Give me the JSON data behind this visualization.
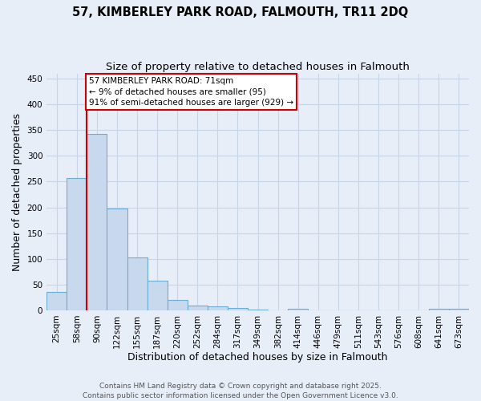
{
  "title_line1": "57, KIMBERLEY PARK ROAD, FALMOUTH, TR11 2DQ",
  "title_line2": "Size of property relative to detached houses in Falmouth",
  "xlabel": "Distribution of detached houses by size in Falmouth",
  "ylabel": "Number of detached properties",
  "categories": [
    "25sqm",
    "58sqm",
    "90sqm",
    "122sqm",
    "155sqm",
    "187sqm",
    "220sqm",
    "252sqm",
    "284sqm",
    "317sqm",
    "349sqm",
    "382sqm",
    "414sqm",
    "446sqm",
    "479sqm",
    "511sqm",
    "543sqm",
    "576sqm",
    "608sqm",
    "641sqm",
    "673sqm"
  ],
  "values": [
    35,
    257,
    343,
    198,
    103,
    57,
    20,
    10,
    7,
    4,
    2,
    0,
    3,
    0,
    0,
    0,
    0,
    0,
    0,
    3,
    3
  ],
  "bar_color": "#c8d9ee",
  "bar_edge_color": "#6aaed6",
  "property_line_color": "#cc0000",
  "property_line_x": 1.5,
  "annotation_text": "57 KIMBERLEY PARK ROAD: 71sqm\n← 9% of detached houses are smaller (95)\n91% of semi-detached houses are larger (929) →",
  "annotation_box_color": "white",
  "annotation_box_edge_color": "#cc0000",
  "ylim": [
    0,
    460
  ],
  "yticks": [
    0,
    50,
    100,
    150,
    200,
    250,
    300,
    350,
    400,
    450
  ],
  "footnote": "Contains HM Land Registry data © Crown copyright and database right 2025.\nContains public sector information licensed under the Open Government Licence v3.0.",
  "background_color": "#e8eef8",
  "grid_color": "#c8d4e8",
  "title_fontsize": 10.5,
  "subtitle_fontsize": 9.5,
  "tick_fontsize": 7.5,
  "label_fontsize": 9,
  "annotation_fontsize": 7.5,
  "footnote_fontsize": 6.5
}
